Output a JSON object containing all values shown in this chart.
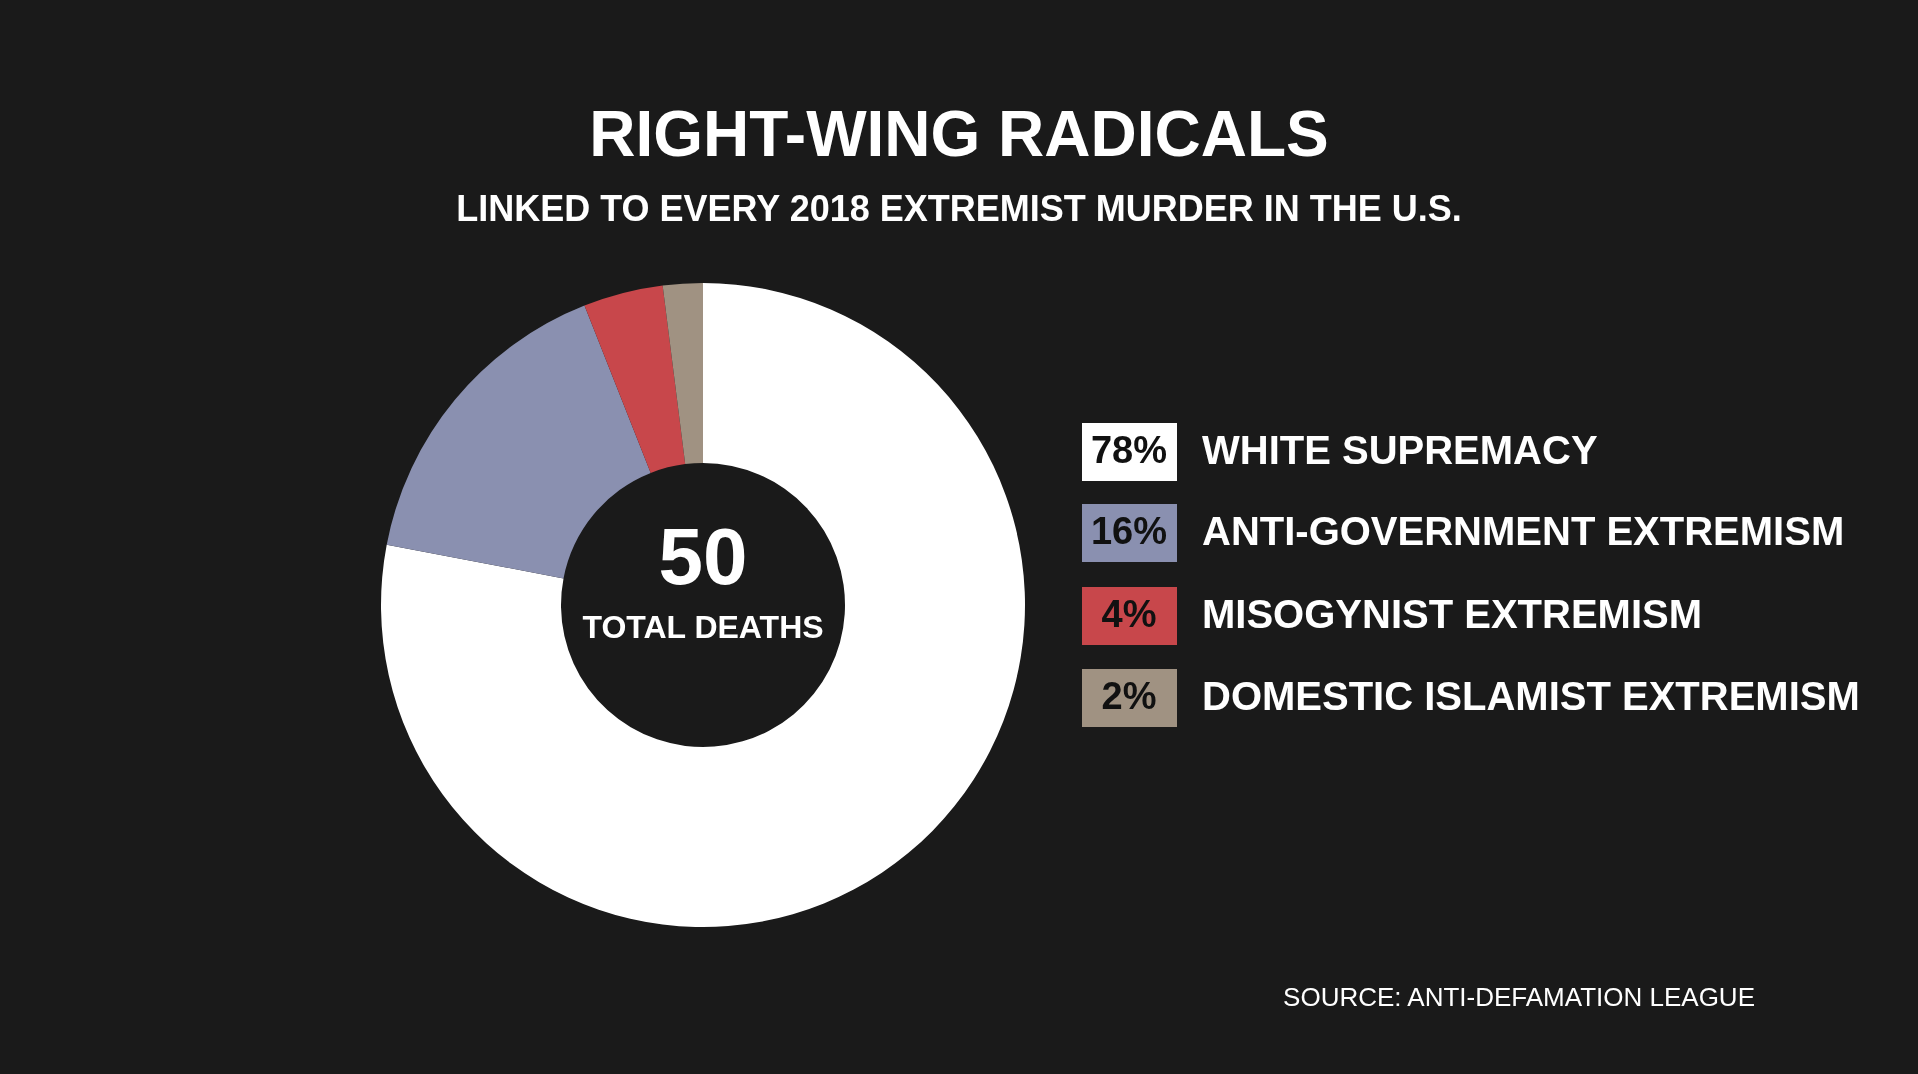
{
  "chart_data": {
    "type": "donut",
    "title": "RIGHT-WING RADICALS",
    "subtitle": "LINKED TO EVERY 2018 EXTREMIST MURDER IN THE U.S.",
    "categories": [
      "WHITE SUPREMACY",
      "ANTI-GOVERNMENT EXTREMISM",
      "MISOGYNIST EXTREMISM",
      "DOMESTIC ISLAMIST EXTREMISM"
    ],
    "values": [
      78,
      16,
      4,
      2
    ],
    "colors": [
      "#ffffff",
      "#8a90b0",
      "#c8474b",
      "#a09282"
    ],
    "value_labels": [
      "78%",
      "16%",
      "4%",
      "2%"
    ],
    "legend": "right",
    "annotations": [
      "50",
      "TOTAL DEATHS",
      "SOURCE: ANTI-DEFAMATION LEAGUE"
    ]
  }
}
